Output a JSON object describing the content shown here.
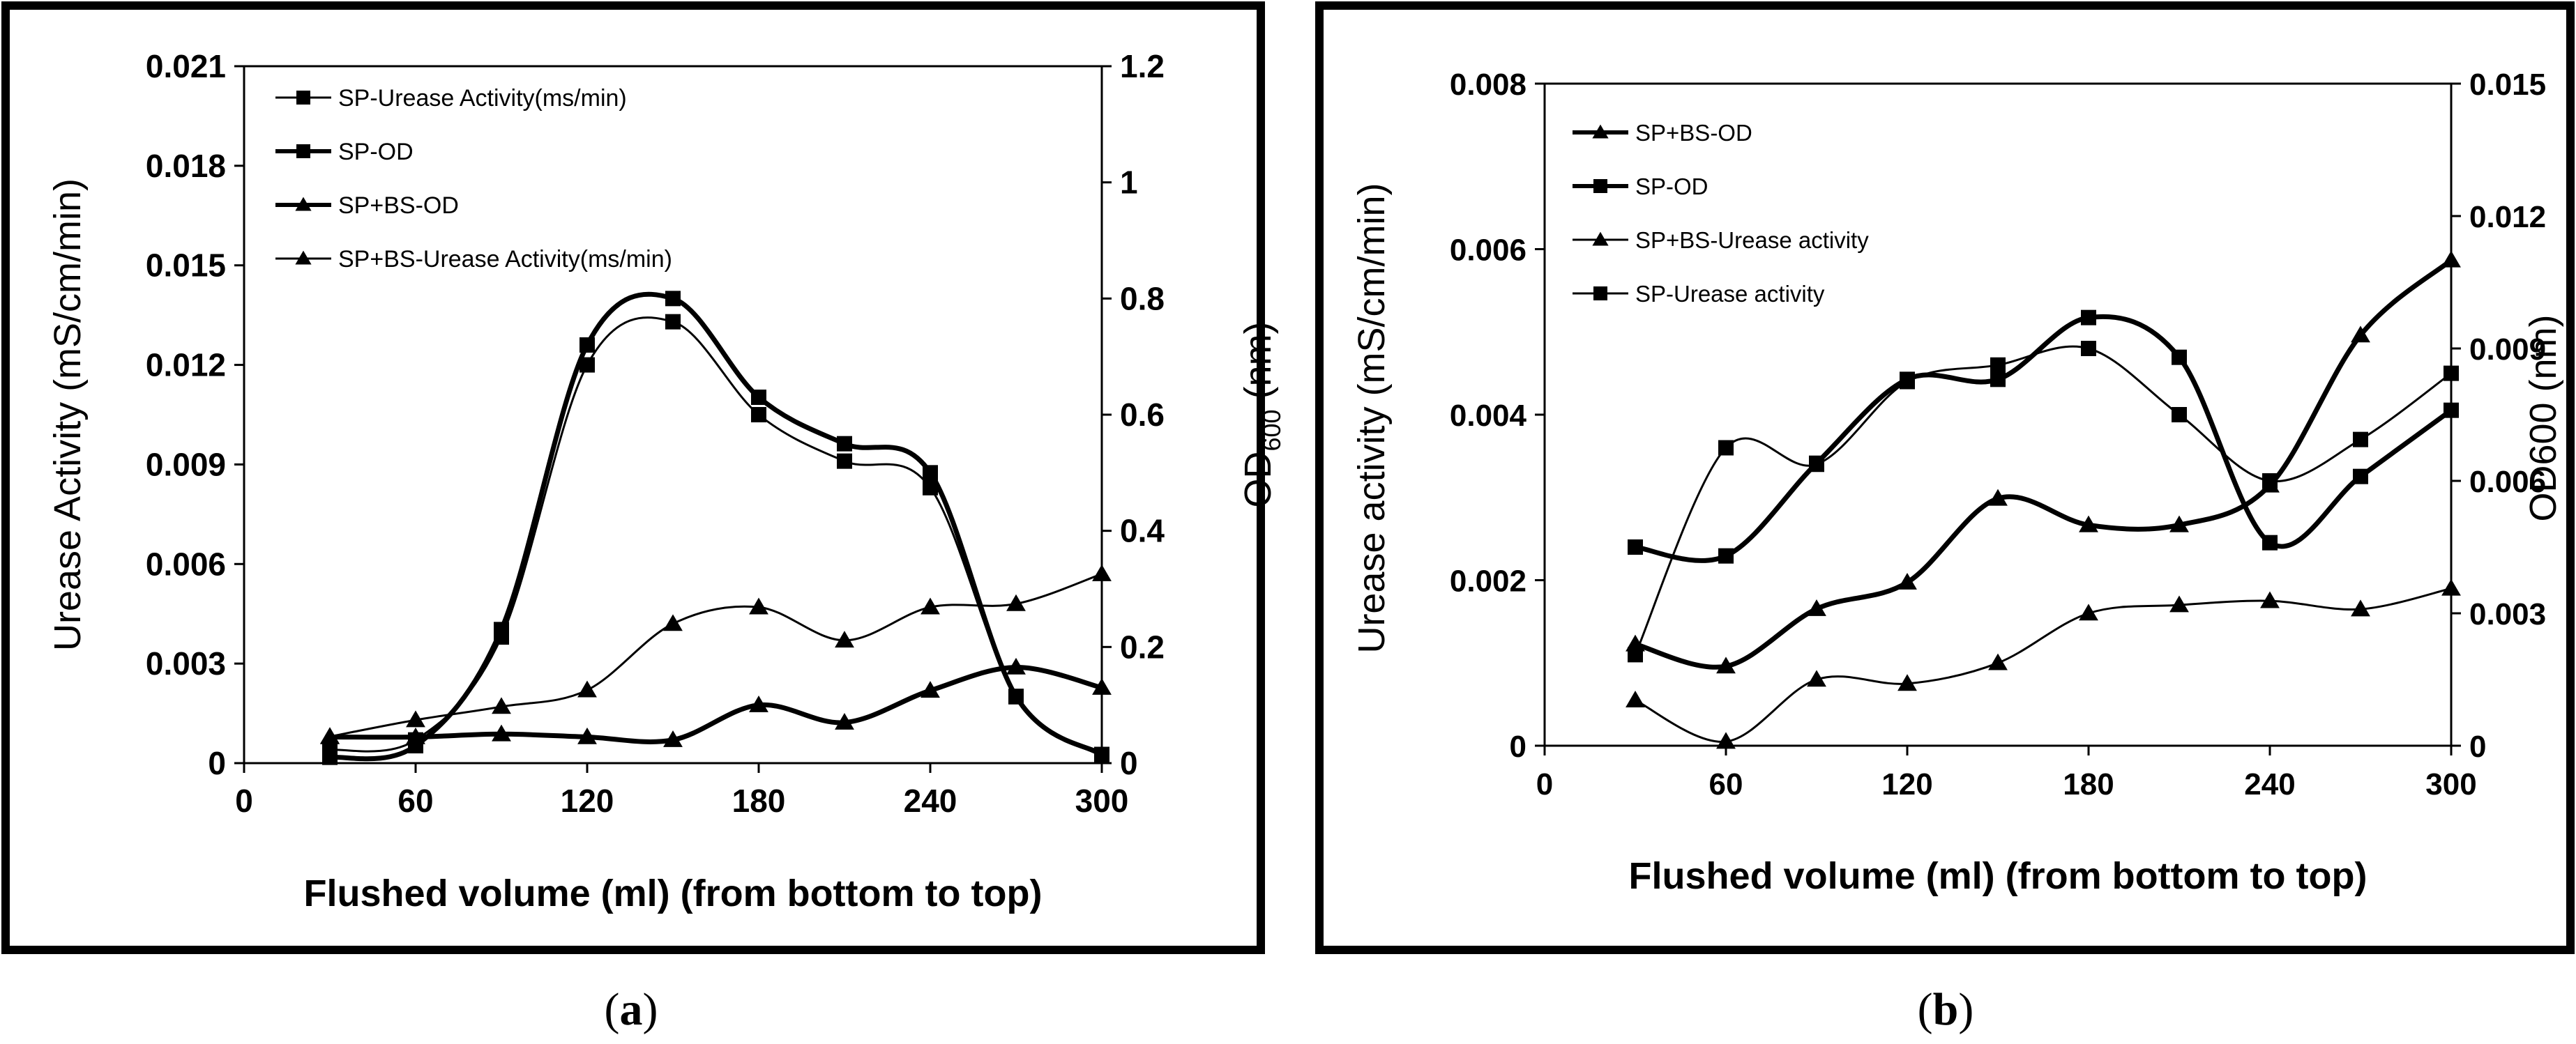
{
  "chart_data": [
    {
      "type": "line",
      "panel_label": "(a)",
      "panel_letter": "a",
      "xlabel": "Flushed volume (ml) (from bottom to top)",
      "ylabel": "Urease Activity (mS/cm/min)",
      "y2label": "OD600",
      "y2label_main": "OD",
      "y2label_sub": "600",
      "y2label_unit": " (nm)",
      "xlim": [
        0,
        300
      ],
      "ylim": [
        0,
        0.021
      ],
      "y2lim": [
        0,
        1.2
      ],
      "x_ticks": [
        "0",
        "60",
        "120",
        "180",
        "240",
        "300"
      ],
      "y_ticks": [
        "0",
        "0.003",
        "0.006",
        "0.009",
        "0.012",
        "0.015",
        "0.018",
        "0.021"
      ],
      "y2_ticks": [
        "0",
        "0.2",
        "0.4",
        "0.6",
        "0.8",
        "1",
        "1.2"
      ],
      "legend_position": "top-left",
      "series": [
        {
          "name": "SP-Urease Activity(ms/min)",
          "axis": "left",
          "marker": "square",
          "weight": "thin",
          "x": [
            30,
            60,
            90,
            120,
            150,
            180,
            210,
            240,
            270,
            300
          ],
          "values": [
            0.0004,
            0.0007,
            0.0038,
            0.012,
            0.0133,
            0.0105,
            0.0091,
            0.0083,
            0.002,
            0.0002
          ]
        },
        {
          "name": "SP-OD",
          "axis": "right",
          "marker": "square",
          "weight": "bold",
          "x": [
            30,
            60,
            90,
            120,
            150,
            180,
            210,
            240,
            270,
            300
          ],
          "values": [
            0.01,
            0.03,
            0.23,
            0.72,
            0.8,
            0.63,
            0.55,
            0.5,
            0.115,
            0.015
          ]
        },
        {
          "name": "SP+BS-OD",
          "axis": "right",
          "marker": "triangle",
          "weight": "bold",
          "x": [
            30,
            60,
            90,
            120,
            150,
            180,
            210,
            240,
            270,
            300
          ],
          "values": [
            0.045,
            0.045,
            0.05,
            0.045,
            0.04,
            0.1,
            0.07,
            0.125,
            0.165,
            0.13
          ]
        },
        {
          "name": "SP+BS-Urease Activity(ms/min)",
          "axis": "left",
          "marker": "triangle",
          "weight": "thin",
          "x": [
            30,
            60,
            90,
            120,
            150,
            180,
            210,
            240,
            270,
            300
          ],
          "values": [
            0.0008,
            0.0013,
            0.0017,
            0.0022,
            0.0042,
            0.0047,
            0.0037,
            0.0047,
            0.0048,
            0.0057
          ]
        }
      ]
    },
    {
      "type": "line",
      "panel_label": "(b)",
      "panel_letter": "b",
      "xlabel": "Flushed volume (ml) (from bottom to top)",
      "ylabel": "Urease activity (mS/cm/min)",
      "y2label": "OD600 (nm)",
      "xlim": [
        0,
        300
      ],
      "ylim": [
        0,
        0.008
      ],
      "y2lim": [
        0,
        0.015
      ],
      "x_ticks": [
        "0",
        "60",
        "120",
        "180",
        "240",
        "300"
      ],
      "y_ticks": [
        "0",
        "0.002",
        "0.004",
        "0.006",
        "0.008"
      ],
      "y2_ticks": [
        "0",
        "0.003",
        "0.006",
        "0.009",
        "0.012",
        "0.015"
      ],
      "legend_position": "top-left",
      "series": [
        {
          "name": "SP+BS-OD",
          "axis": "right",
          "marker": "triangle",
          "weight": "bold",
          "x": [
            30,
            60,
            90,
            120,
            150,
            180,
            210,
            240,
            270,
            300
          ],
          "values": [
            0.0023,
            0.0018,
            0.0031,
            0.0037,
            0.0056,
            0.005,
            0.005,
            0.0059,
            0.0093,
            0.011
          ]
        },
        {
          "name": "SP-OD",
          "axis": "right",
          "marker": "square",
          "weight": "bold",
          "x": [
            30,
            60,
            90,
            120,
            150,
            180,
            210,
            240,
            270,
            300
          ],
          "values": [
            0.0045,
            0.0043,
            0.0064,
            0.0083,
            0.0083,
            0.0097,
            0.0088,
            0.0046,
            0.0061,
            0.0076
          ]
        },
        {
          "name": "SP+BS-Urease activity",
          "axis": "left",
          "marker": "triangle",
          "weight": "thin",
          "x": [
            30,
            60,
            90,
            120,
            150,
            180,
            210,
            240,
            270,
            300
          ],
          "values": [
            0.00055,
            5e-05,
            0.0008,
            0.00075,
            0.001,
            0.0016,
            0.0017,
            0.00175,
            0.00165,
            0.0019
          ]
        },
        {
          "name": "SP-Urease activity",
          "axis": "left",
          "marker": "square",
          "weight": "thin",
          "x": [
            30,
            60,
            90,
            120,
            150,
            180,
            210,
            240,
            270,
            300
          ],
          "values": [
            0.0011,
            0.0036,
            0.0034,
            0.0044,
            0.0046,
            0.0048,
            0.004,
            0.0032,
            0.0037,
            0.0045
          ]
        }
      ]
    }
  ]
}
